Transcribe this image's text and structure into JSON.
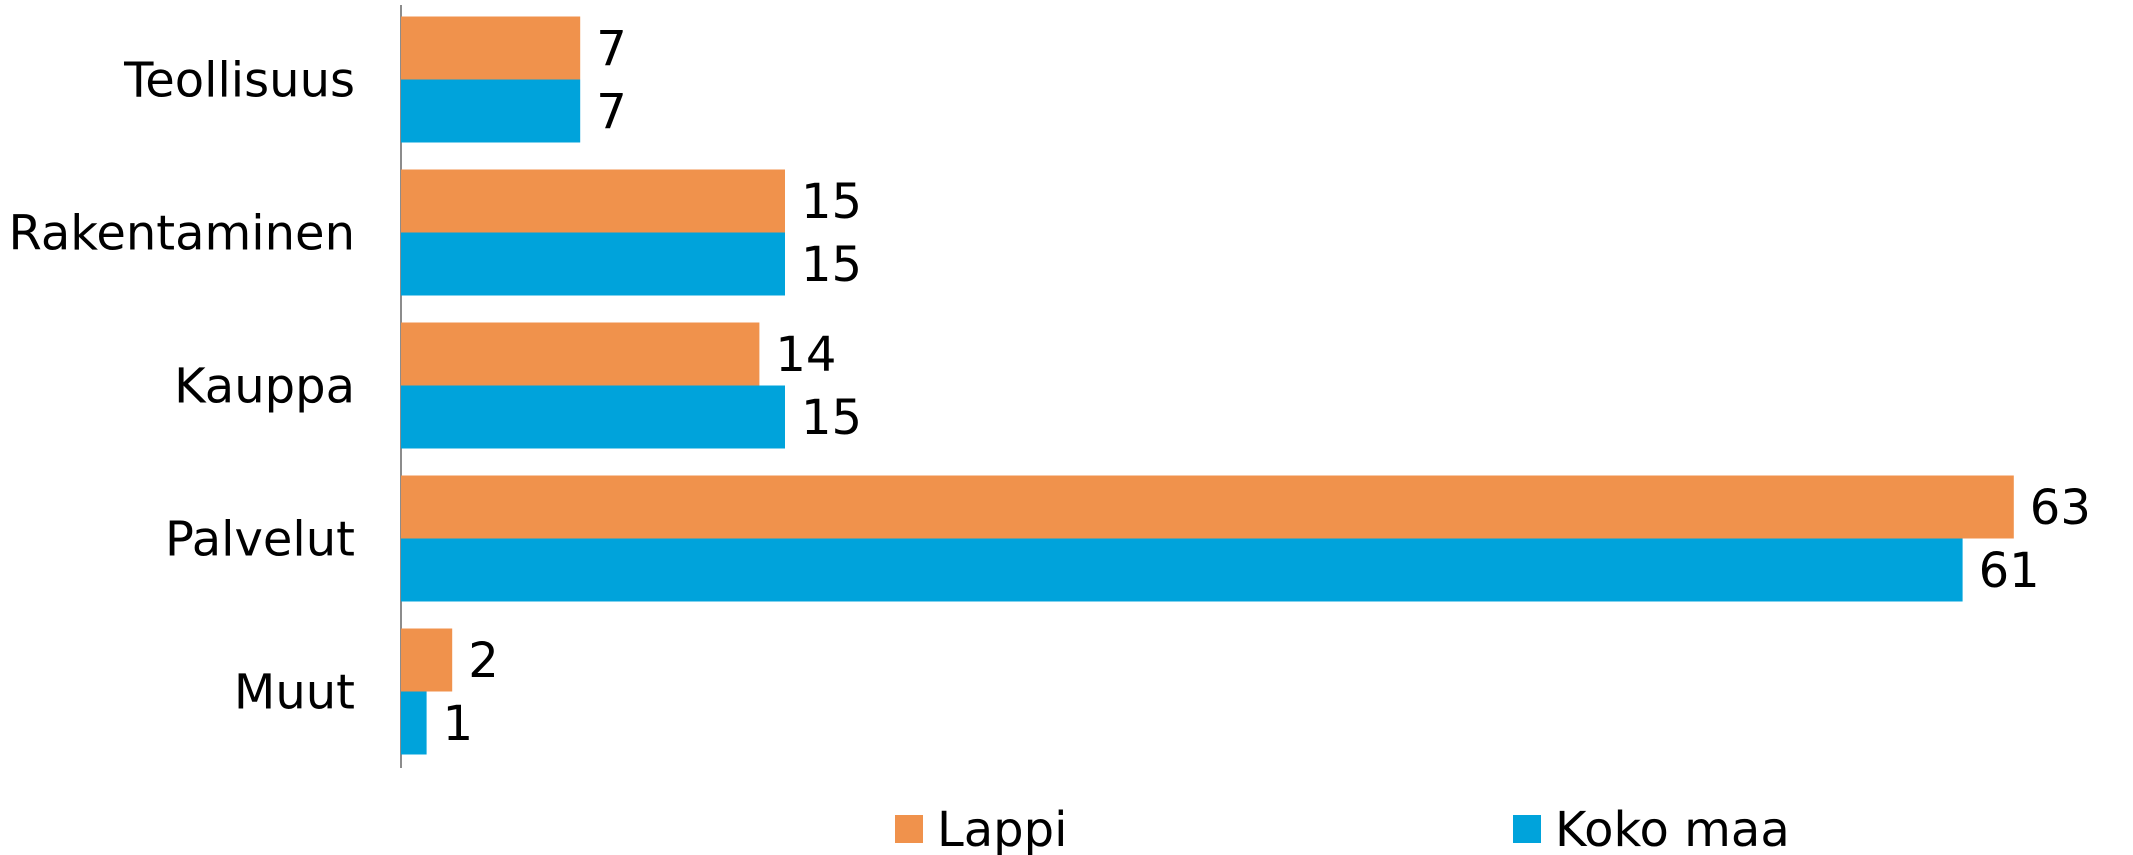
{
  "chart_data": {
    "type": "bar",
    "orientation": "horizontal",
    "categories": [
      "Teollisuus",
      "Rakentaminen",
      "Kauppa",
      "Palvelut",
      "Muut"
    ],
    "series": [
      {
        "name": "Lappi",
        "color": "#F0924C",
        "values": [
          7,
          15,
          14,
          63,
          2
        ]
      },
      {
        "name": "Koko maa",
        "color": "#00A3DB",
        "values": [
          7,
          15,
          15,
          61,
          1
        ]
      }
    ],
    "xlim": [
      0,
      65
    ],
    "grid": false,
    "legend_position": "bottom",
    "data_labels": true
  }
}
